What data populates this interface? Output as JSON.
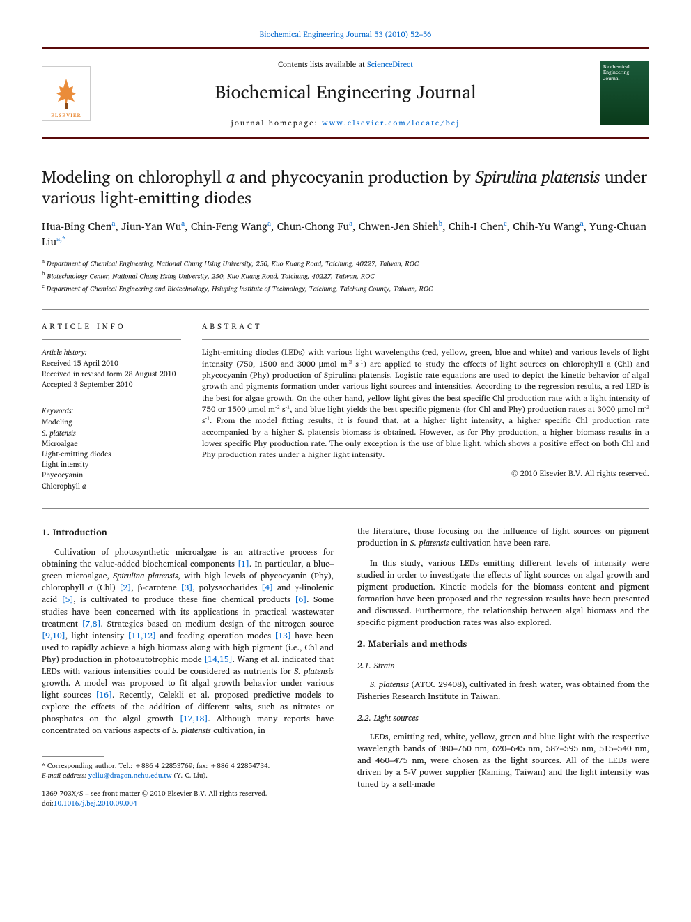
{
  "top_link": {
    "pre": "Biochemical Engineering Journal 53 (2010) 52–56",
    "url_text": ""
  },
  "header": {
    "contents_line_pre": "Contents lists available at ",
    "contents_link": "ScienceDirect",
    "journal_title": "Biochemical Engineering Journal",
    "homepage_pre": "journal homepage: ",
    "homepage_link": "www.elsevier.com/locate/bej",
    "elsevier_label": "ELSEVIER",
    "cover_text": "Biochemical Engineering Journal"
  },
  "article": {
    "title_pre": "Modeling on chlorophyll ",
    "title_italic1": "a",
    "title_mid": " and phycocyanin production by ",
    "title_italic2": "Spirulina platensis",
    "title_post": " under various light-emitting diodes",
    "authors_html": "Hua-Bing Chen|a|, Jiun-Yan Wu|a|, Chin-Feng Wang|a|, Chun-Chong Fu|a|, Chwen-Jen Shieh|b|, Chih-I Chen|c|, Chih-Yu Wang|a|, Yung-Chuan Liu|a,*",
    "affiliations": [
      {
        "sup": "a",
        "text": "Department of Chemical Engineering, National Chung Hsing University, 250, Kuo Kuang Road, Taichung, 40227, Taiwan, ROC"
      },
      {
        "sup": "b",
        "text": "Biotechnology Center, National Chung Hsing University, 250, Kuo Kuang Road, Taichung, 40227, Taiwan, ROC"
      },
      {
        "sup": "c",
        "text": "Department of Chemical Engineering and Biotechnology, Hsiuping Institute of Technology, Taichung, Taichung County, Taiwan, ROC"
      }
    ]
  },
  "article_info": {
    "label": "ARTICLE INFO",
    "history_label": "Article history:",
    "history": [
      "Received 15 April 2010",
      "Received in revised form 28 August 2010",
      "Accepted 3 September 2010"
    ],
    "keywords_label": "Keywords:",
    "keywords": [
      "Modeling",
      "S. platensis",
      "Microalgae",
      "Light-emitting diodes",
      "Light intensity",
      "Phycocyanin",
      "Chlorophyll a"
    ]
  },
  "abstract": {
    "label": "ABSTRACT",
    "text": "Light-emitting diodes (LEDs) with various light wavelengths (red, yellow, green, blue and white) and various levels of light intensity (750, 1500 and 3000 μmol m⁻² s⁻¹) are applied to study the effects of light sources on chlorophyll a (Chl) and phycocyanin (Phy) production of Spirulina platensis. Logistic rate equations are used to depict the kinetic behavior of algal growth and pigments formation under various light sources and intensities. According to the regression results, a red LED is the best for algae growth. On the other hand, yellow light gives the best specific Chl production rate with a light intensity of 750 or 1500 μmol m⁻² s⁻¹, and blue light yields the best specific pigments (for Chl and Phy) production rates at 3000 μmol m⁻² s⁻¹. From the model fitting results, it is found that, at a higher light intensity, a higher specific Chl production rate accompanied by a higher S. platensis biomass is obtained. However, as for Phy production, a higher biomass results in a lower specific Phy production rate. The only exception is the use of blue light, which shows a positive effect on both Chl and Phy production rates under a higher light intensity.",
    "copyright": "© 2010 Elsevier B.V. All rights reserved."
  },
  "sections": {
    "intro_heading": "1. Introduction",
    "intro_p1_a": "Cultivation of photosynthetic microalgae is an attractive process for obtaining the value-added biochemical components ",
    "intro_p1_ref1": "[1]",
    "intro_p1_b": ". In particular, a blue–green microalgae, ",
    "intro_p1_italic1": "Spirulina platensis",
    "intro_p1_c": ", with high levels of phycocyanin (Phy), chlorophyll ",
    "intro_p1_italic2": "a",
    "intro_p1_d": " (Chl) ",
    "intro_p1_ref2": "[2]",
    "intro_p1_e": ", β-carotene ",
    "intro_p1_ref3": "[3]",
    "intro_p1_f": ", polysaccharides ",
    "intro_p1_ref4": "[4]",
    "intro_p1_g": " and γ-linolenic acid ",
    "intro_p1_ref5": "[5]",
    "intro_p1_h": ", is cultivated to produce these fine chemical products ",
    "intro_p1_ref6": "[6]",
    "intro_p1_i": ". Some studies have been concerned with its applications in practical wastewater treatment ",
    "intro_p1_ref7": "[7,8]",
    "intro_p1_j": ". Strategies based on medium design of the nitrogen source ",
    "intro_p1_ref8": "[9,10]",
    "intro_p1_k": ", light intensity ",
    "intro_p1_ref9": "[11,12]",
    "intro_p1_l": " and feeding operation modes ",
    "intro_p1_ref10": "[13]",
    "intro_p1_m": " have been used to rapidly achieve a high biomass along with high pigment (i.e., Chl and Phy) production in photoautotrophic mode ",
    "intro_p1_ref11": "[14,15]",
    "intro_p1_n": ". Wang et al. indicated that LEDs with various intensities could be considered as nutrients for ",
    "intro_p1_italic3": "S. platensis",
    "intro_p1_o": " growth. A model was proposed to fit algal growth behavior under various light sources ",
    "intro_p1_ref12": "[16]",
    "intro_p1_p": ". Recently, Celekli et al. proposed predictive models to explore the effects of the addition of different salts, such as nitrates or phosphates on the algal growth ",
    "intro_p1_ref13": "[17,18]",
    "intro_p1_q": ". Although many reports have concentrated on various aspects of ",
    "intro_p1_italic4": "S. platensis",
    "intro_p1_r": " cultivation, in",
    "intro_p2_a": "the literature, those focusing on the influence of light sources on pigment production in ",
    "intro_p2_italic1": "S. platensis",
    "intro_p2_b": " cultivation have been rare.",
    "intro_p3": "In this study, various LEDs emitting different levels of intensity were studied in order to investigate the effects of light sources on algal growth and pigment production. Kinetic models for the biomass content and pigment formation have been proposed and the regression results have been presented and discussed. Furthermore, the relationship between algal biomass and the specific pigment production rates was also explored.",
    "mm_heading": "2. Materials and methods",
    "strain_heading": "2.1. Strain",
    "strain_p_a": "",
    "strain_p_italic": "S. platensis",
    "strain_p_b": " (ATCC 29408), cultivated in fresh water, was obtained from the Fisheries Research Institute in Taiwan.",
    "light_heading": "2.2. Light sources",
    "light_p": "LEDs, emitting red, white, yellow, green and blue light with the respective wavelength bands of 380–760 nm, 620–645 nm, 587–595 nm, 515–540 nm, and 460–475 nm, were chosen as the light sources. All of the LEDs were driven by a 5-V power supplier (Kaming, Taiwan) and the light intensity was tuned by a self-made"
  },
  "footnote": {
    "corr": "* Corresponding author. Tel.: +886 4 22853769; fax: +886 4 22854734.",
    "email_label": "E-mail address: ",
    "email": "ycliu@dragon.nchu.edu.tw",
    "email_post": " (Y.-C. Liu)."
  },
  "doi": {
    "line1": "1369-703X/$ – see front matter © 2010 Elsevier B.V. All rights reserved.",
    "line2_pre": "doi:",
    "line2_link": "10.1016/j.bej.2010.09.004"
  },
  "colors": {
    "brand_bar": "#5a0a0a",
    "link": "#0066cc",
    "text": "#1a1a1a",
    "elsevier_orange": "#e67817",
    "cover_bg_top": "#1a5a3a",
    "cover_bg_bottom": "#0a3a1a"
  },
  "typography": {
    "body_pt": 12,
    "title_pt": 24,
    "journal_title_pt": 26,
    "abstract_pt": 11.5,
    "footnote_pt": 10
  }
}
